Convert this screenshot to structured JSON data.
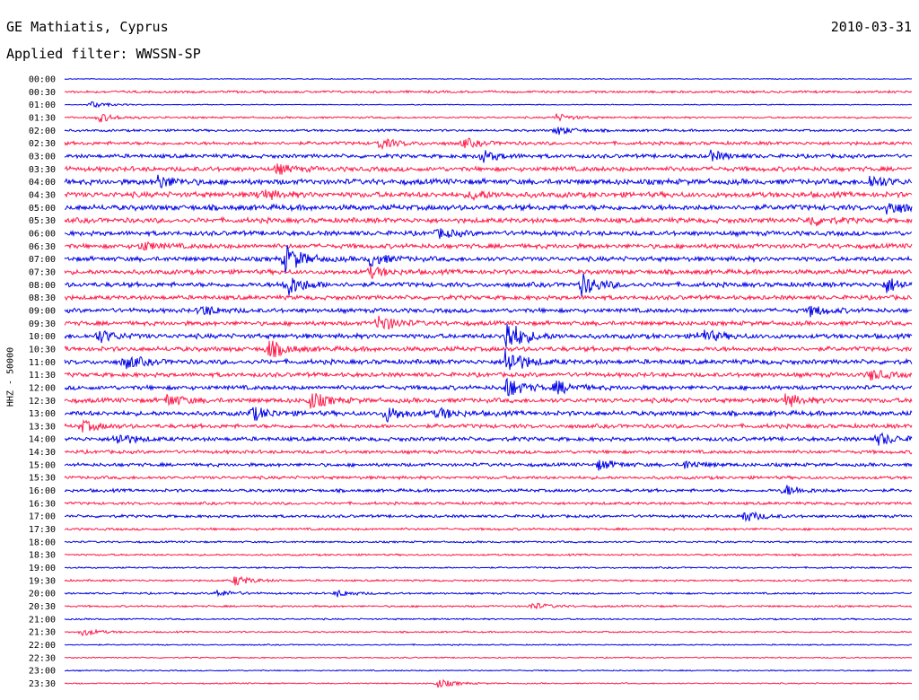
{
  "header": {
    "station": "GE Mathiatis, Cyprus",
    "date": "2010-03-31",
    "filter": "Applied filter: WWSSN-SP"
  },
  "chart_data": {
    "type": "line",
    "title": "GE Mathiatis, Cyprus",
    "subtitle": "Applied filter: WWSSN-SP",
    "ylabel": "HHZ - 50000",
    "colors": [
      "#0000e6",
      "#ff1a4a"
    ],
    "rows": [
      "00:00",
      "00:30",
      "01:00",
      "01:30",
      "02:00",
      "02:30",
      "03:00",
      "03:30",
      "04:00",
      "04:30",
      "05:00",
      "05:30",
      "06:00",
      "06:30",
      "07:00",
      "07:30",
      "08:00",
      "08:30",
      "09:00",
      "09:30",
      "10:00",
      "10:30",
      "11:00",
      "11:30",
      "12:00",
      "12:30",
      "13:00",
      "13:30",
      "14:00",
      "14:30",
      "15:00",
      "15:30",
      "16:00",
      "16:30",
      "17:00",
      "17:30",
      "18:00",
      "18:30",
      "19:00",
      "19:30",
      "20:00",
      "20:30",
      "21:00",
      "21:30",
      "22:00",
      "22:30",
      "23:00",
      "23:30"
    ],
    "noise_level": [
      0.5,
      1.5,
      0.6,
      1.2,
      1.5,
      2.2,
      2.5,
      3.0,
      3.5,
      3.5,
      3.5,
      3.2,
      3.0,
      3.0,
      3.0,
      3.0,
      3.0,
      2.8,
      2.8,
      2.8,
      3.0,
      3.0,
      3.0,
      2.8,
      2.8,
      3.0,
      3.0,
      2.6,
      2.6,
      2.2,
      2.2,
      2.0,
      2.0,
      1.8,
      1.8,
      1.5,
      1.2,
      1.2,
      1.0,
      1.2,
      1.2,
      1.2,
      1.0,
      1.0,
      0.8,
      0.8,
      0.8,
      0.8
    ],
    "events": [
      {
        "row": "01:00",
        "time_fraction": 0.03,
        "amplitude": 4
      },
      {
        "row": "01:30",
        "time_fraction": 0.04,
        "amplitude": 5
      },
      {
        "row": "01:30",
        "time_fraction": 0.58,
        "amplitude": 4
      },
      {
        "row": "02:00",
        "time_fraction": 0.58,
        "amplitude": 5
      },
      {
        "row": "02:30",
        "time_fraction": 0.37,
        "amplitude": 6
      },
      {
        "row": "02:30",
        "time_fraction": 0.47,
        "amplitude": 5
      },
      {
        "row": "03:00",
        "time_fraction": 0.49,
        "amplitude": 7
      },
      {
        "row": "03:00",
        "time_fraction": 0.76,
        "amplitude": 6
      },
      {
        "row": "03:30",
        "time_fraction": 0.25,
        "amplitude": 5
      },
      {
        "row": "04:00",
        "time_fraction": 0.11,
        "amplitude": 7
      },
      {
        "row": "04:00",
        "time_fraction": 0.95,
        "amplitude": 7
      },
      {
        "row": "04:30",
        "time_fraction": 0.23,
        "amplitude": 6
      },
      {
        "row": "04:30",
        "time_fraction": 0.48,
        "amplitude": 5
      },
      {
        "row": "05:00",
        "time_fraction": 0.97,
        "amplitude": 8
      },
      {
        "row": "05:30",
        "time_fraction": 0.88,
        "amplitude": 6
      },
      {
        "row": "06:00",
        "time_fraction": 0.44,
        "amplitude": 5
      },
      {
        "row": "06:30",
        "time_fraction": 0.09,
        "amplitude": 5
      },
      {
        "row": "07:00",
        "time_fraction": 0.26,
        "amplitude": 16
      },
      {
        "row": "07:00",
        "time_fraction": 0.36,
        "amplitude": 7
      },
      {
        "row": "07:30",
        "time_fraction": 0.36,
        "amplitude": 6
      },
      {
        "row": "08:00",
        "time_fraction": 0.26,
        "amplitude": 14
      },
      {
        "row": "08:00",
        "time_fraction": 0.61,
        "amplitude": 12
      },
      {
        "row": "08:00",
        "time_fraction": 0.97,
        "amplitude": 8
      },
      {
        "row": "09:00",
        "time_fraction": 0.16,
        "amplitude": 6
      },
      {
        "row": "09:00",
        "time_fraction": 0.88,
        "amplitude": 6
      },
      {
        "row": "09:30",
        "time_fraction": 0.37,
        "amplitude": 10
      },
      {
        "row": "10:00",
        "time_fraction": 0.04,
        "amplitude": 7
      },
      {
        "row": "10:00",
        "time_fraction": 0.52,
        "amplitude": 20
      },
      {
        "row": "10:00",
        "time_fraction": 0.75,
        "amplitude": 8
      },
      {
        "row": "10:30",
        "time_fraction": 0.24,
        "amplitude": 10
      },
      {
        "row": "11:00",
        "time_fraction": 0.07,
        "amplitude": 8
      },
      {
        "row": "11:00",
        "time_fraction": 0.52,
        "amplitude": 16
      },
      {
        "row": "11:30",
        "time_fraction": 0.95,
        "amplitude": 6
      },
      {
        "row": "12:00",
        "time_fraction": 0.52,
        "amplitude": 12
      },
      {
        "row": "12:00",
        "time_fraction": 0.58,
        "amplitude": 7
      },
      {
        "row": "12:30",
        "time_fraction": 0.12,
        "amplitude": 7
      },
      {
        "row": "12:30",
        "time_fraction": 0.29,
        "amplitude": 9
      },
      {
        "row": "12:30",
        "time_fraction": 0.85,
        "amplitude": 7
      },
      {
        "row": "13:00",
        "time_fraction": 0.22,
        "amplitude": 8
      },
      {
        "row": "13:00",
        "time_fraction": 0.38,
        "amplitude": 8
      },
      {
        "row": "13:00",
        "time_fraction": 0.44,
        "amplitude": 6
      },
      {
        "row": "13:30",
        "time_fraction": 0.02,
        "amplitude": 6
      },
      {
        "row": "14:00",
        "time_fraction": 0.06,
        "amplitude": 7
      },
      {
        "row": "14:00",
        "time_fraction": 0.96,
        "amplitude": 7
      },
      {
        "row": "15:00",
        "time_fraction": 0.63,
        "amplitude": 6
      },
      {
        "row": "15:00",
        "time_fraction": 0.73,
        "amplitude": 5
      },
      {
        "row": "16:00",
        "time_fraction": 0.85,
        "amplitude": 6
      },
      {
        "row": "17:00",
        "time_fraction": 0.8,
        "amplitude": 7
      },
      {
        "row": "19:30",
        "time_fraction": 0.2,
        "amplitude": 6
      },
      {
        "row": "20:00",
        "time_fraction": 0.18,
        "amplitude": 4
      },
      {
        "row": "20:00",
        "time_fraction": 0.32,
        "amplitude": 4
      },
      {
        "row": "20:30",
        "time_fraction": 0.55,
        "amplitude": 4
      },
      {
        "row": "21:30",
        "time_fraction": 0.02,
        "amplitude": 4
      },
      {
        "row": "23:30",
        "time_fraction": 0.44,
        "amplitude": 5
      }
    ]
  }
}
